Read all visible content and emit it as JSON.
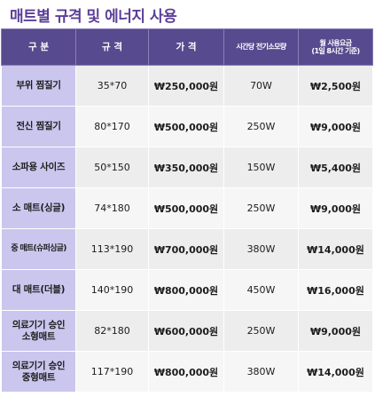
{
  "title": "매트별 규격 및 에너지 사용",
  "table": {
    "headers": [
      "구 분",
      "규 격",
      "가 격",
      "시간당 전기소모량",
      "월 사용요금\n(1일 8시간 기준)"
    ],
    "rows": [
      {
        "category": "부위 찜질기",
        "size": "35*70",
        "price": "₩250,000원",
        "power": "70W",
        "monthly": "₩2,500원"
      },
      {
        "category": "전신 찜질기",
        "size": "80*170",
        "price": "₩500,000원",
        "power": "250W",
        "monthly": "₩9,000원"
      },
      {
        "category": "소파용 사이즈",
        "size": "50*150",
        "price": "₩350,000원",
        "power": "150W",
        "monthly": "₩5,400원"
      },
      {
        "category": "소 매트(싱글)",
        "size": "74*180",
        "price": "₩500,000원",
        "power": "250W",
        "monthly": "₩9,000원"
      },
      {
        "category": "중 매트(슈퍼싱글)",
        "size": "113*190",
        "price": "₩700,000원",
        "power": "380W",
        "monthly": "₩14,000원"
      },
      {
        "category": "대 매트(더블)",
        "size": "140*190",
        "price": "₩800,000원",
        "power": "450W",
        "monthly": "₩16,000원"
      },
      {
        "category": "의료기기 승인\n소형매트",
        "size": "82*180",
        "price": "₩600,000원",
        "power": "250W",
        "monthly": "₩9,000원"
      },
      {
        "category": "의료기기 승인\n중형매트",
        "size": "117*190",
        "price": "₩800,000원",
        "power": "380W",
        "monthly": "₩14,000원"
      }
    ]
  }
}
